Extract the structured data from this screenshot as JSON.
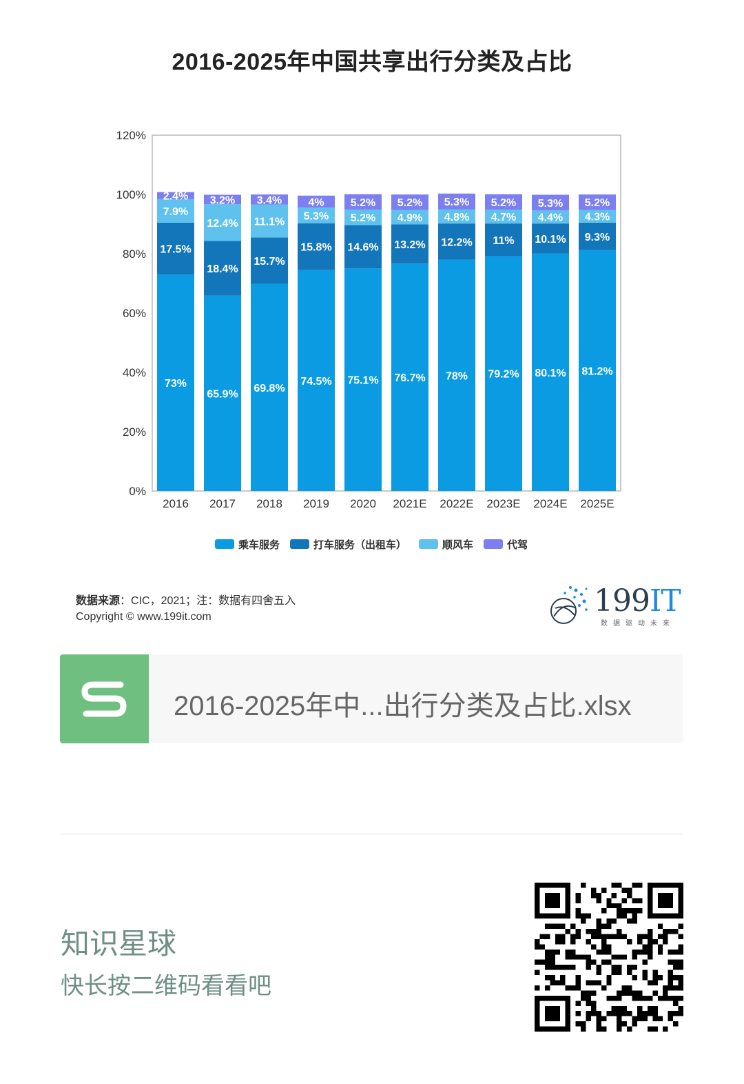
{
  "chart_data": {
    "type": "bar",
    "stacked": true,
    "title": "2016-2025年中国共享出行分类及占比",
    "categories": [
      "2016",
      "2017",
      "2018",
      "2019",
      "2020",
      "2021E",
      "2022E",
      "2023E",
      "2024E",
      "2025E"
    ],
    "ylim": [
      0,
      120
    ],
    "yticks": [
      "0%",
      "20%",
      "40%",
      "60%",
      "80%",
      "100%",
      "120%"
    ],
    "legend_position": "bottom",
    "series": [
      {
        "name": "乘车服务",
        "color": "#0a9be3",
        "values": [
          73,
          65.9,
          69.8,
          74.5,
          75.1,
          76.7,
          78,
          79.2,
          80.1,
          81.2
        ],
        "labels": [
          "73%",
          "65.9%",
          "69.8%",
          "74.5%",
          "75.1%",
          "76.7%",
          "78%",
          "79.2%",
          "80.1%",
          "81.2%"
        ]
      },
      {
        "name": "打车服务（出租车）",
        "color": "#1476ba",
        "values": [
          17.5,
          18.4,
          15.7,
          15.8,
          14.6,
          13.2,
          12.2,
          11,
          10.1,
          9.3
        ],
        "labels": [
          "17.5%",
          "18.4%",
          "15.7%",
          "15.8%",
          "14.6%",
          "13.2%",
          "12.2%",
          "11%",
          "10.1%",
          "9.3%"
        ]
      },
      {
        "name": "顺风车",
        "color": "#5ec1ee",
        "values": [
          7.9,
          12.4,
          11.1,
          5.3,
          5.2,
          4.9,
          4.8,
          4.7,
          4.4,
          4.3
        ],
        "labels": [
          "7.9%",
          "12.4%",
          "11.1%",
          "5.3%",
          "5.2%",
          "4.9%",
          "4.8%",
          "4.7%",
          "4.4%",
          "4.3%"
        ]
      },
      {
        "name": "代驾",
        "color": "#7b7ff0",
        "values": [
          2.4,
          3.2,
          3.4,
          4,
          5.2,
          5.2,
          5.3,
          5.2,
          5.3,
          5.2
        ],
        "labels": [
          "2.4%",
          "3.2%",
          "3.4%",
          "4%",
          "5.2%",
          "5.2%",
          "5.3%",
          "5.2%",
          "5.3%",
          "5.2%"
        ]
      }
    ]
  },
  "footer": {
    "source_label": "数据来源",
    "source_text": "：CIC，2021；注：数据有四舍五入",
    "copyright": "Copyright ©   www.199it.com",
    "brand_main": "199",
    "brand_it": "IT",
    "brand_sub": "数据驱动未来"
  },
  "file_card": {
    "file_name": "2016-2025年中...出行分类及占比.xlsx",
    "icon": "spreadsheet-s-icon"
  },
  "promo": {
    "title": "知识星球",
    "subtitle": "快长按二维码看看吧"
  }
}
